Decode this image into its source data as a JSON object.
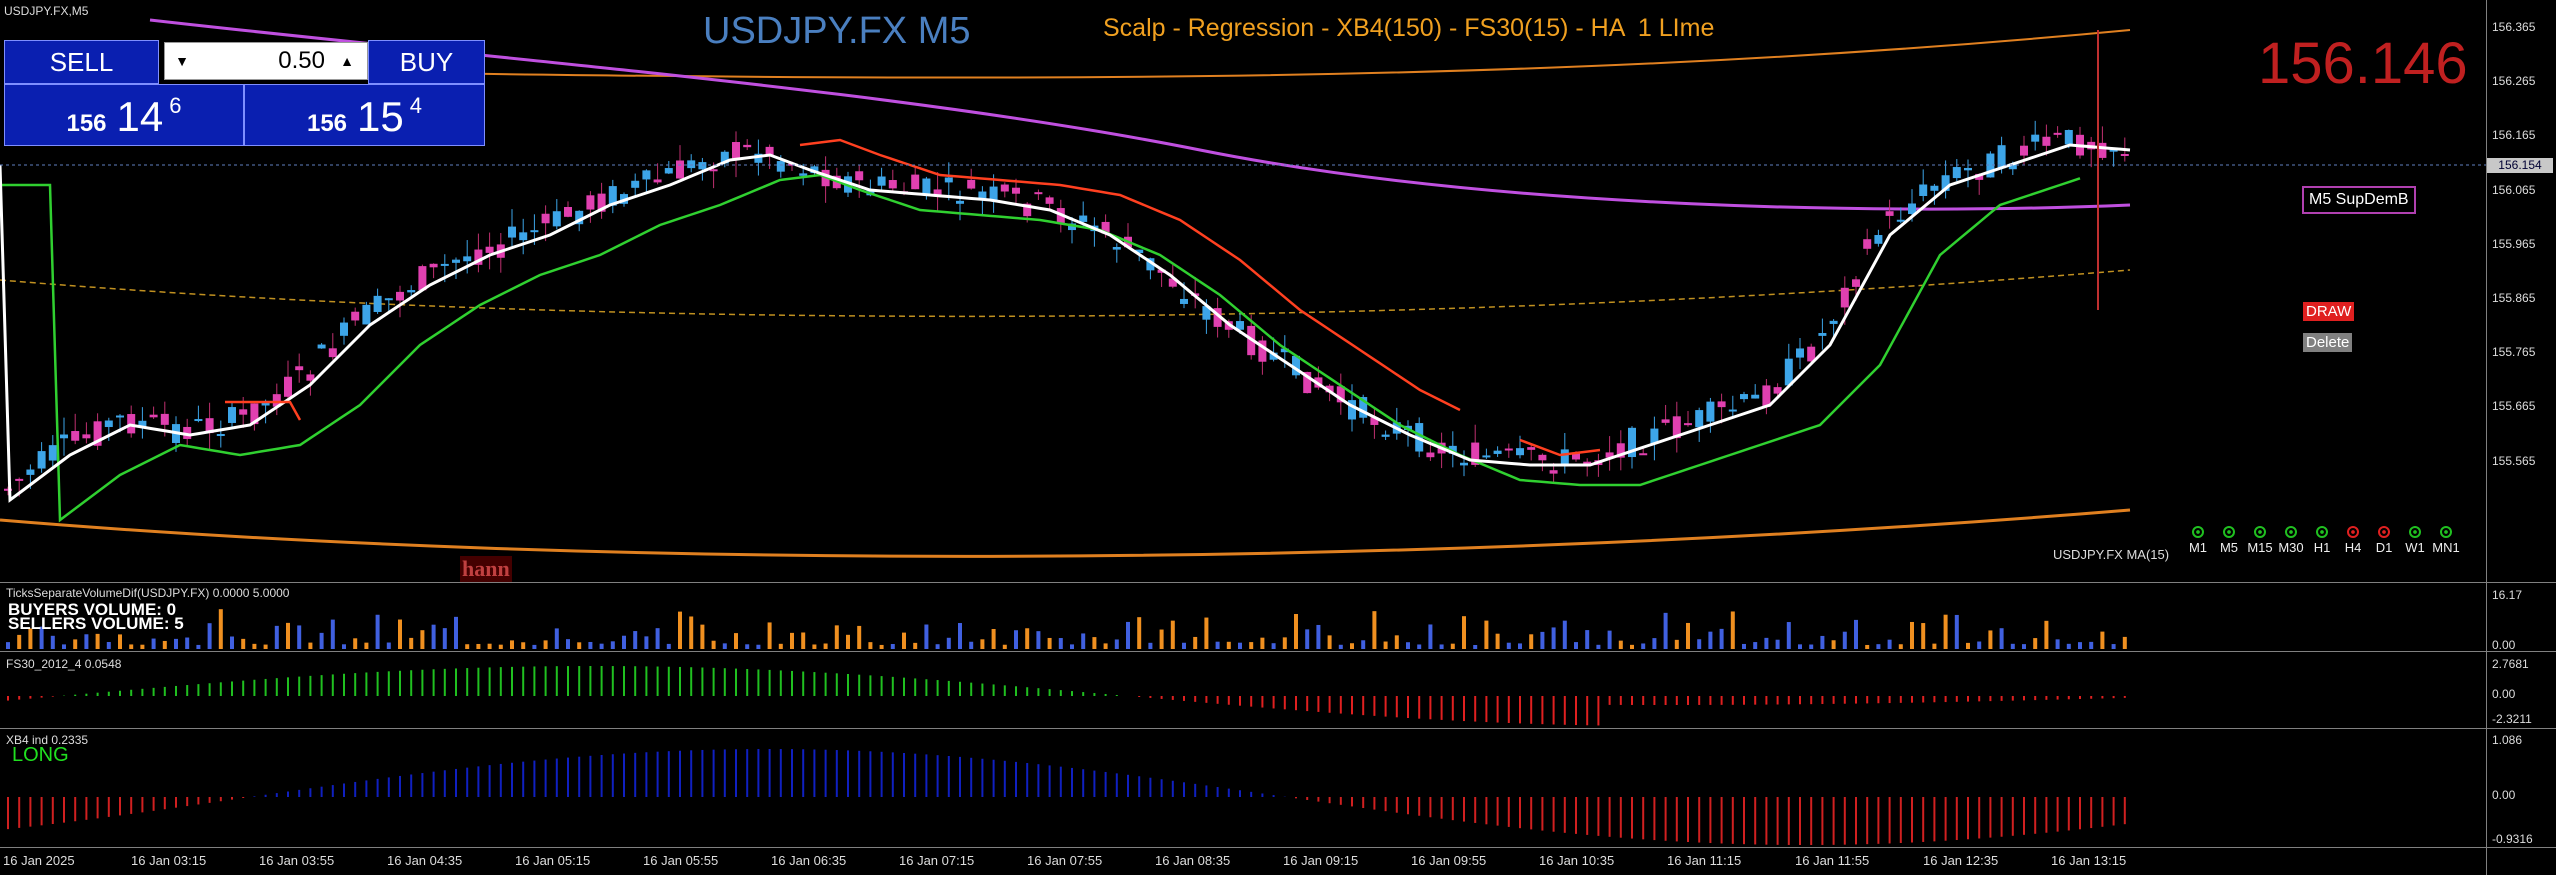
{
  "window": {
    "symbol_tf": "USDJPY.FX,M5"
  },
  "main": {
    "title": "USDJPY.FX M5",
    "subtitle": "Scalp - Regression - XB4(150) - FS30(15) - HA  1 LIme",
    "big_price": "156.146",
    "current_price_tag": "156.154",
    "ma_label": "USDJPY.FX MA(15)",
    "watermark": "hann",
    "colors": {
      "bull": "#3da5e8",
      "bear": "#e040b0",
      "title": "#4a7fc0",
      "subtitle": "#f0a020",
      "big_price": "#c02020"
    }
  },
  "trade_panel": {
    "sell_label": "SELL",
    "buy_label": "BUY",
    "lot": "0.50",
    "bid": {
      "prefix": "156",
      "big": "14",
      "sup": "6"
    },
    "ask": {
      "prefix": "156",
      "big": "15",
      "sup": "4"
    }
  },
  "side_buttons": {
    "supdem": "M5 SupDemB",
    "draw": "DRAW",
    "delete": "Delete"
  },
  "timeframes": [
    {
      "label": "M1",
      "status": "green"
    },
    {
      "label": "M5",
      "status": "green"
    },
    {
      "label": "M15",
      "status": "green"
    },
    {
      "label": "M30",
      "status": "green"
    },
    {
      "label": "H1",
      "status": "green"
    },
    {
      "label": "H4",
      "status": "red"
    },
    {
      "label": "D1",
      "status": "red"
    },
    {
      "label": "W1",
      "status": "green"
    },
    {
      "label": "MN1",
      "status": "green"
    }
  ],
  "price_axis": [
    "156.365",
    "156.265",
    "156.165",
    "156.065",
    "155.965",
    "155.865",
    "155.765",
    "155.665",
    "155.565"
  ],
  "time_axis": [
    "16 Jan 2025",
    "16 Jan 03:15",
    "16 Jan 03:55",
    "16 Jan 04:35",
    "16 Jan 05:15",
    "16 Jan 05:55",
    "16 Jan 06:35",
    "16 Jan 07:15",
    "16 Jan 07:55",
    "16 Jan 08:35",
    "16 Jan 09:15",
    "16 Jan 09:55",
    "16 Jan 10:35",
    "16 Jan 11:15",
    "16 Jan 11:55",
    "16 Jan 12:35",
    "16 Jan 13:15"
  ],
  "volume_pane": {
    "title": "TicksSeparateVolumeDif(USDJPY.FX) 0.0000 5.0000",
    "buyers": "BUYERS VOLUME: 0",
    "sellers": "SELLERS VOLUME: 5",
    "scale_top": "16.17",
    "scale_bottom": "0.00"
  },
  "fs30_pane": {
    "title": "FS30_2012_4 0.0548",
    "scale": [
      "2.7681",
      "0.00",
      "-2.3211"
    ]
  },
  "xb4_pane": {
    "title": "XB4 ind 0.2335",
    "signal": "LONG",
    "scale": [
      "1.086",
      "0.00",
      "-0.9316"
    ]
  }
}
